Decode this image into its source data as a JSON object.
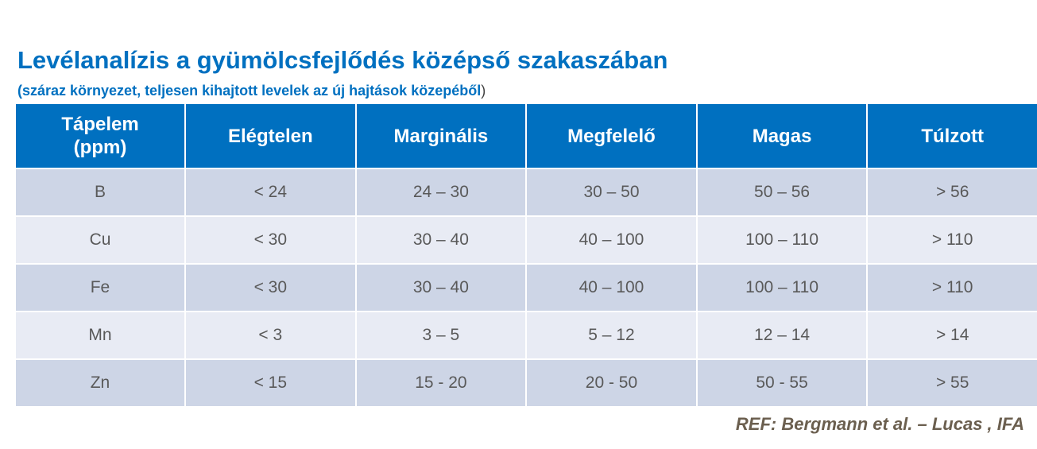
{
  "title": "Levélanalízis a gyümölcsfejlődés középső szakaszában",
  "subtitle": {
    "text": "(száraz környezet, teljesen kihajtott levelek az új hajtások közepéből",
    "close_paren": ")"
  },
  "table": {
    "header": {
      "nutrient_line1": "Tápelem",
      "nutrient_line2": "(ppm)",
      "columns": [
        "Elégtelen",
        "Marginális",
        "Megfelelő",
        "Magas",
        "Túlzott"
      ]
    },
    "rows": [
      {
        "element": "B",
        "values": [
          "< 24",
          "24 – 30",
          "30 – 50",
          "50 – 56",
          "> 56"
        ]
      },
      {
        "element": "Cu",
        "values": [
          "< 30",
          "30 – 40",
          "40 – 100",
          "100 – 110",
          "> 110"
        ]
      },
      {
        "element": "Fe",
        "values": [
          "< 30",
          "30 – 40",
          "40 – 100",
          "100 – 110",
          "> 110"
        ]
      },
      {
        "element": "Mn",
        "values": [
          "< 3",
          "3 – 5",
          "5 – 12",
          "12 – 14",
          "> 14"
        ]
      },
      {
        "element": "Zn",
        "values": [
          "< 15",
          "15 - 20",
          "20 - 50",
          "50 - 55",
          "> 55"
        ]
      }
    ]
  },
  "reference": "REF: Bergmann et al. – Lucas , IFA",
  "colors": {
    "title": "#0070c0",
    "header_bg": "#0070c0",
    "row_dark": "#cdd5e6",
    "row_light": "#e8ebf4",
    "cell_text": "#595959",
    "reference_text": "#6b5f4f"
  }
}
